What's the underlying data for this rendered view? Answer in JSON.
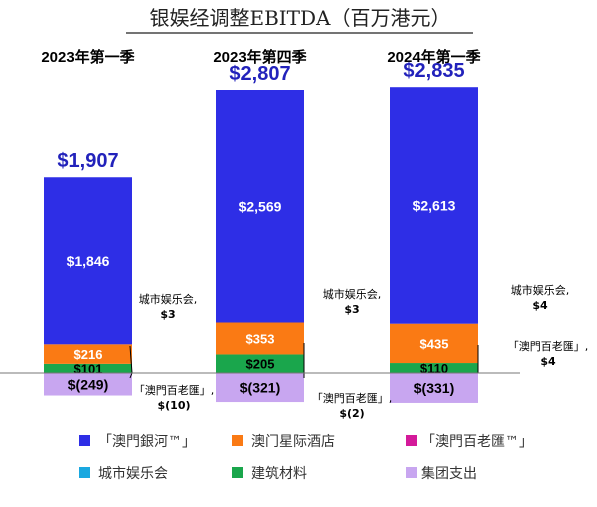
{
  "chart_data": {
    "type": "bar",
    "stacked": true,
    "title": "银娱经调整EBITDA（百万港元）",
    "categories": [
      "2023年第一季",
      "2023年第四季",
      "2024年第一季"
    ],
    "totals": [
      "$1,907",
      "$2,807",
      "$2,835"
    ],
    "total_values": [
      1907,
      2807,
      2835
    ],
    "series": [
      {
        "name": "「澳門銀河™」",
        "color": "#2e2ee6",
        "values": [
          1846,
          2569,
          2613
        ],
        "labels": [
          "$1,846",
          "$2,569",
          "$2,613"
        ]
      },
      {
        "name": "澳门星际酒店",
        "color": "#fa7a14",
        "values": [
          216,
          353,
          435
        ],
        "labels": [
          "$216",
          "$353",
          "$435"
        ]
      },
      {
        "name": "「澳門百老匯™」",
        "color": "#d41a9a",
        "values": [
          -10,
          -2,
          4
        ],
        "labels": [
          "",
          "",
          ""
        ]
      },
      {
        "name": "城市娱乐会",
        "color": "#1aa8e0",
        "values": [
          3,
          3,
          4
        ],
        "labels": [
          "",
          "",
          ""
        ]
      },
      {
        "name": "建筑材料",
        "color": "#1aa64c",
        "values": [
          101,
          205,
          110
        ],
        "labels": [
          "$101",
          "$205",
          "$110"
        ]
      },
      {
        "name": "集团支出",
        "color": "#c8a6f0",
        "values": [
          -249,
          -321,
          -331
        ],
        "labels": [
          "$(249)",
          "$(321)",
          "$(331)"
        ]
      }
    ],
    "callouts": [
      {
        "bar": 0,
        "line1": "城市娱乐会,",
        "line2": "$3"
      },
      {
        "bar": 0,
        "line1": "「澳門百老匯」,",
        "line2": "$(10)"
      },
      {
        "bar": 1,
        "line1": "城市娱乐会,",
        "line2": "$3"
      },
      {
        "bar": 1,
        "line1": "「澳門百老匯」,",
        "line2": "$(2)"
      },
      {
        "bar": 2,
        "line1": "城市娱乐会,",
        "line2": "$4"
      },
      {
        "bar": 2,
        "line1": "「澳門百老匯」,",
        "line2": "$4"
      }
    ],
    "legend_position": "bottom",
    "grid": false
  }
}
